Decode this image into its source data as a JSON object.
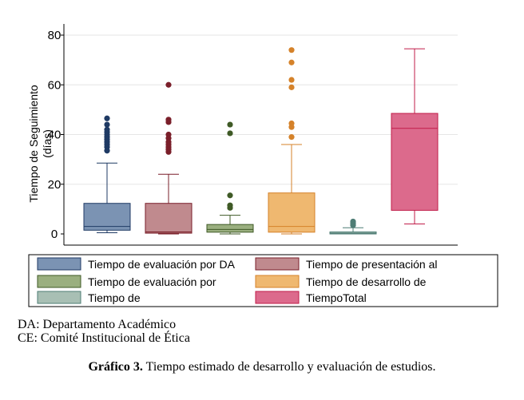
{
  "chart_data": {
    "type": "box",
    "ylabel_lines": [
      "Tiempo de Seguimiento",
      "(días)"
    ],
    "ylim": [
      0,
      80
    ],
    "yticks": [
      {
        "value": 0,
        "label": "0"
      },
      {
        "value": 20,
        "label": "20"
      },
      {
        "value": 40,
        "label": "40"
      },
      {
        "value": 60,
        "label": "60"
      },
      {
        "value": 80,
        "label": "80"
      }
    ],
    "grid": true,
    "legend_position": "bottom",
    "series": [
      {
        "name": "Tiempo de evaluación por DA",
        "color": "#7b93b3",
        "edge": "#1f3a64",
        "min": 0.5,
        "q1": 1.5,
        "median": 3.0,
        "q3": 12.3,
        "max": 28.5,
        "outliers": [
          33.5,
          35,
          36,
          37,
          38,
          39,
          40,
          41,
          42,
          44,
          46.5
        ]
      },
      {
        "name": "Tiempo de presentación al",
        "color": "#c08a8e",
        "edge": "#7a1f2a",
        "min": 0,
        "q1": 0.3,
        "median": 0.8,
        "q3": 12.3,
        "max": 24.0,
        "outliers": [
          33,
          34,
          35,
          36,
          37,
          38.5,
          40,
          45,
          46,
          60
        ]
      },
      {
        "name": "Tiempo de evaluación por",
        "color": "#9aaf7f",
        "edge": "#3f5a26",
        "min": 0,
        "q1": 0.7,
        "median": 1.8,
        "q3": 3.8,
        "max": 7.5,
        "outliers": [
          10.5,
          11.5,
          15.5,
          40.5,
          44
        ]
      },
      {
        "name": "Tiempo de desarrollo de",
        "color": "#efb870",
        "edge": "#d5822a",
        "min": 0,
        "q1": 0.7,
        "median": 3.0,
        "q3": 16.5,
        "max": 36.0,
        "outliers": [
          39,
          43,
          44.5,
          59,
          62,
          69,
          74
        ]
      },
      {
        "name": "Tiempo de",
        "color": "#a8bfb4",
        "edge": "#4e7d75",
        "min": 0,
        "q1": 0,
        "median": 0.3,
        "q3": 0.8,
        "max": 2.5,
        "outliers": [
          3.5,
          4.0,
          4.5,
          5.0
        ]
      },
      {
        "name": "TiempoTotal",
        "color": "#dc6a8c",
        "edge": "#c11d4a",
        "min": 4.0,
        "q1": 9.5,
        "median": 42.5,
        "q3": 48.5,
        "max": 74.5,
        "outliers": []
      }
    ]
  },
  "notes": {
    "line1": "DA: Departamento Académico",
    "line2": "CE: Comité Institucional de Ética"
  },
  "caption": {
    "label": "Gráfico 3.",
    "text": " Tiempo estimado de desarrollo y evaluación de estudios."
  }
}
